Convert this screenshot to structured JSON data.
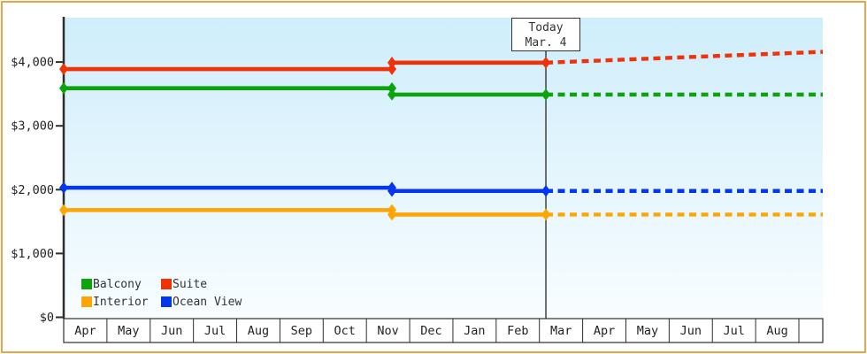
{
  "style": {
    "frame_border": "#e7a44f",
    "plot_gradient_top": "#cfedfb",
    "plot_gradient_bottom": "#f8fdff",
    "axis_color": "#2e2e2e"
  },
  "chart_data": {
    "type": "line",
    "title": "",
    "description": "Cruise cabin price history and forecast; solid lines are past prices with a step change in Nov, dotted lines are projected prices after today",
    "y_axis": {
      "min": 0,
      "max": 4700,
      "ticks": [
        {
          "value": 0,
          "label": "$0"
        },
        {
          "value": 1000,
          "label": "$1,000"
        },
        {
          "value": 2000,
          "label": "$2,000"
        },
        {
          "value": 3000,
          "label": "$3,000"
        },
        {
          "value": 4000,
          "label": "$4,000"
        }
      ]
    },
    "x_axis": {
      "months": [
        "Apr",
        "May",
        "Jun",
        "Jul",
        "Aug",
        "Sep",
        "Oct",
        "Nov",
        "Dec",
        "Jan",
        "Feb",
        "Mar",
        "Apr",
        "May",
        "Jun",
        "Jul",
        "Aug"
      ]
    },
    "today": {
      "line1": "Today",
      "line2": "Mar. 4",
      "month_index": 11.15
    },
    "price_change": {
      "month_index": 7.59
    },
    "series": [
      {
        "name": "Suite",
        "color": "#f03208",
        "value_before": 3890,
        "value_after": 3990,
        "forecast_end": 4160
      },
      {
        "name": "Balcony",
        "color": "#0ca30c",
        "value_before": 3590,
        "value_after": 3490,
        "forecast_end": 3490
      },
      {
        "name": "Ocean View",
        "color": "#0336ee",
        "value_before": 2030,
        "value_after": 1980,
        "forecast_end": 1980
      },
      {
        "name": "Interior",
        "color": "#ffa502",
        "value_before": 1680,
        "value_after": 1610,
        "forecast_end": 1610
      }
    ],
    "legend": [
      {
        "label": "Balcony",
        "color": "#0ca30c"
      },
      {
        "label": "Suite",
        "color": "#f03208"
      },
      {
        "label": "Interior",
        "color": "#ffa502"
      },
      {
        "label": "Ocean View",
        "color": "#0336ee"
      }
    ]
  }
}
